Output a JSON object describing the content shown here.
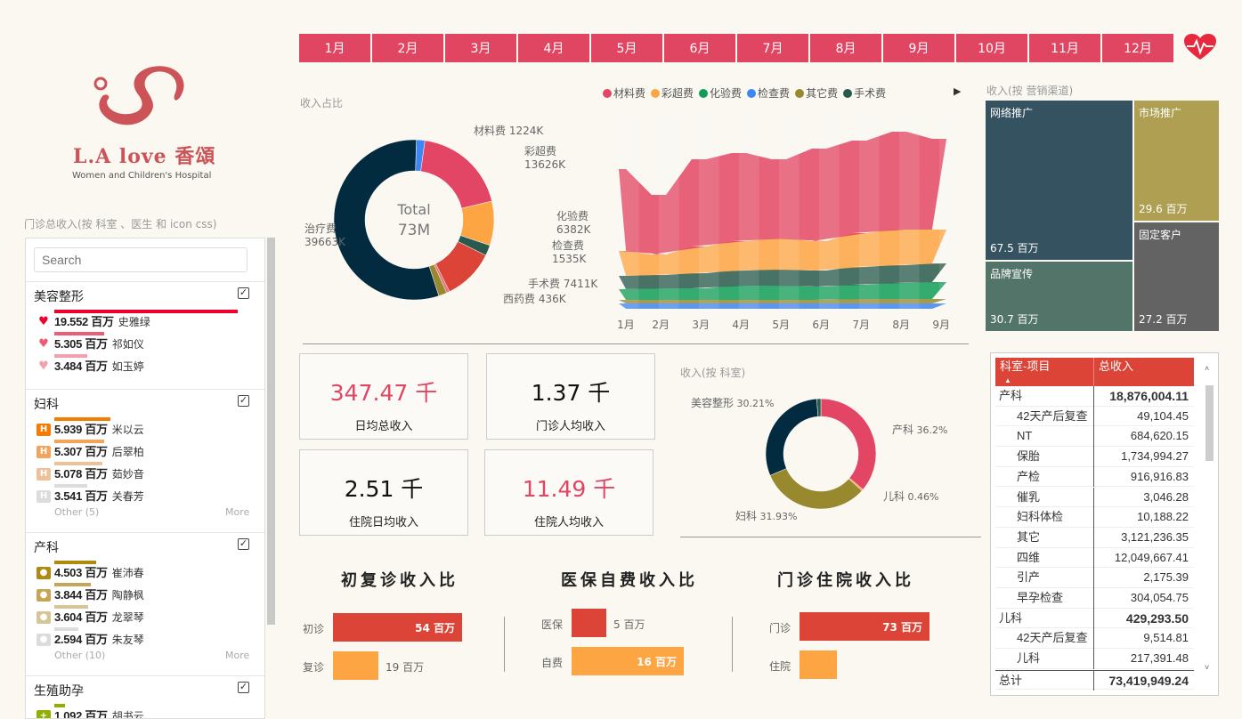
{
  "months": [
    "1月",
    "2月",
    "3月",
    "4月",
    "5月",
    "6月",
    "7月",
    "8月",
    "9月",
    "10月",
    "11月",
    "12月"
  ],
  "colors": {
    "accent": "#e04562",
    "red": "#dc4437",
    "orange": "#fda543",
    "navy": "#032b40"
  },
  "logo": {
    "brand": "L.A love 香頌",
    "subtitle": "Women and Children's Hospital"
  },
  "left_panel": {
    "title": "门诊总收入(按 科室 、医生  和 icon css)",
    "search_placeholder": "Search",
    "max_value": 19.552,
    "unit": "百万",
    "groups": [
      {
        "name": "美容整形",
        "icon": "heart-pulse-icon",
        "entries": [
          {
            "value": "19.552",
            "num": 19.552,
            "name": "史雅绿",
            "color": "#f0002c"
          },
          {
            "value": "5.305",
            "num": 5.305,
            "name": "祁如仪",
            "color": "#ee5c74"
          },
          {
            "value": "3.484",
            "num": 3.484,
            "name": "如玉婷",
            "color": "#f2a0ae"
          }
        ]
      },
      {
        "name": "妇科",
        "icon": "hospital-h-icon",
        "entries": [
          {
            "value": "5.939",
            "num": 5.939,
            "name": "米以云",
            "color": "#f57c00"
          },
          {
            "value": "5.307",
            "num": 5.307,
            "name": "后翠柏",
            "color": "#f0a45c"
          },
          {
            "value": "5.078",
            "num": 5.078,
            "name": "茹妙音",
            "color": "#edc298"
          },
          {
            "value": "3.541",
            "num": 3.541,
            "name": "关春芳",
            "color": "#dcdcdc"
          }
        ],
        "other": "Other (5)",
        "more": "More"
      },
      {
        "name": "产科",
        "icon": "doctor-icon",
        "entries": [
          {
            "value": "4.503",
            "num": 4.503,
            "name": "崔沛春",
            "color": "#b08a10"
          },
          {
            "value": "3.844",
            "num": 3.844,
            "name": "陶静枫",
            "color": "#c6a656"
          },
          {
            "value": "3.604",
            "num": 3.604,
            "name": "龙翠琴",
            "color": "#d6c596"
          },
          {
            "value": "2.594",
            "num": 2.594,
            "name": "朱友琴",
            "color": "#dcdcdc"
          }
        ],
        "other": "Other (10)",
        "more": "More"
      },
      {
        "name": "生殖助孕",
        "icon": "plus-icon",
        "entries": [
          {
            "value": "1.092",
            "num": 1.092,
            "name": "胡书云",
            "color": "#8fb000"
          }
        ]
      }
    ]
  },
  "donut": {
    "title": "收入占比",
    "center_label": "Total",
    "center_value": "73M",
    "slices": [
      {
        "name": "材料费",
        "label": "1224K",
        "value": 1224,
        "color": "#3d86f5"
      },
      {
        "name": "彩超费",
        "label": "13626K",
        "value": 13626,
        "color": "#e34664"
      },
      {
        "name": "化验费",
        "label": "6382K",
        "value": 6382,
        "color": "#fda543"
      },
      {
        "name": "检查费",
        "label": "1535K",
        "value": 1535,
        "color": "#285a4e"
      },
      {
        "name": "手术费",
        "label": "7411K",
        "value": 7411,
        "color": "#db4437"
      },
      {
        "name": "西药费",
        "label": "436K",
        "value": 436,
        "color": "#e8757c"
      },
      {
        "name": "",
        "label": "",
        "value": 1200,
        "color": "#98892e"
      },
      {
        "name": "治疗费",
        "label": "39663K",
        "value": 39663,
        "color": "#032b40"
      }
    ]
  },
  "chart_data": {
    "type": "area",
    "title": "",
    "categories": [
      "1月",
      "2月",
      "3月",
      "4月",
      "5月",
      "6月",
      "7月",
      "8月",
      "9月"
    ],
    "legend_position": "top",
    "series": [
      {
        "name": "检查费",
        "color": "#3d86f5",
        "values": [
          6,
          6,
          6,
          6,
          6,
          6,
          6,
          6,
          6
        ]
      },
      {
        "name": "其它费",
        "color": "#98892e",
        "values": [
          4,
          4,
          4,
          4,
          4,
          4,
          5,
          5,
          5
        ]
      },
      {
        "name": "化验费",
        "color": "#109d58",
        "values": [
          12,
          13,
          13,
          16,
          16,
          15,
          16,
          18,
          19
        ]
      },
      {
        "name": "手术费",
        "color": "#285a4e",
        "values": [
          15,
          15,
          17,
          17,
          18,
          18,
          20,
          20,
          21
        ]
      },
      {
        "name": "彩超费",
        "color": "#fda543",
        "values": [
          28,
          23,
          30,
          33,
          35,
          33,
          38,
          40,
          38
        ]
      },
      {
        "name": "材料费",
        "color": "#e34664",
        "values": [
          92,
          67,
          98,
          99,
          89,
          104,
          104,
          110,
          102
        ]
      }
    ],
    "legend_order": [
      "材料费",
      "彩超费",
      "化验费",
      "检查费",
      "其它费",
      "手术费"
    ]
  },
  "kpis": [
    {
      "value": "347.47 千",
      "label": "日均总收入",
      "color": "#e04562"
    },
    {
      "value": "1.37 千",
      "label": "门诊人均收入",
      "color": "#111"
    },
    {
      "value": "2.51 千",
      "label": "住院日均收入",
      "color": "#111"
    },
    {
      "value": "11.49 千",
      "label": "住院人均收入",
      "color": "#e04562"
    }
  ],
  "dept_donut": {
    "title": "收入(按 科室)",
    "slices": [
      {
        "name": "产科",
        "label": "36.2%",
        "value": 36.2,
        "color": "#e34664"
      },
      {
        "name": "儿科",
        "label": "0.46%",
        "value": 0.46,
        "color": "#fda543"
      },
      {
        "name": "妇科",
        "label": "31.93%",
        "value": 31.93,
        "color": "#98892e"
      },
      {
        "name": "美容整形",
        "label": "30.21%",
        "value": 30.21,
        "color": "#032b40"
      },
      {
        "name": "",
        "label": "",
        "value": 1.2,
        "color": "#285a4e"
      }
    ]
  },
  "treemap": {
    "title": "收入(按  营销渠道)",
    "items": [
      {
        "name": "网络推广",
        "value": "67.5 百万",
        "color": "#34525f"
      },
      {
        "name": "市场推广",
        "value": "29.6 百万",
        "color": "#ae9f52"
      },
      {
        "name": "品牌宣传",
        "value": "30.7 百万",
        "color": "#537468"
      },
      {
        "name": "固定客户",
        "value": "27.2 百万",
        "color": "#636363"
      }
    ]
  },
  "table": {
    "headers": [
      "科室-项目",
      "总收入"
    ],
    "rows": [
      {
        "name": "产科",
        "value": "18,876,004.11",
        "level": 0
      },
      {
        "name": "42天产后复查",
        "value": "49,104.45",
        "level": 1
      },
      {
        "name": "NT",
        "value": "684,620.15",
        "level": 1
      },
      {
        "name": "保胎",
        "value": "1,734,994.27",
        "level": 1
      },
      {
        "name": "产检",
        "value": "916,916.83",
        "level": 1
      },
      {
        "name": "催乳",
        "value": "3,046.28",
        "level": 1
      },
      {
        "name": "妇科体检",
        "value": "10,188.22",
        "level": 1
      },
      {
        "name": "其它",
        "value": "3,121,236.35",
        "level": 1
      },
      {
        "name": "四维",
        "value": "12,049,667.41",
        "level": 1
      },
      {
        "name": "引产",
        "value": "2,175.39",
        "level": 1
      },
      {
        "name": "早孕检查",
        "value": "304,054.75",
        "level": 1
      },
      {
        "name": "儿科",
        "value": "429,293.50",
        "level": 0
      },
      {
        "name": "42天产后复查",
        "value": "9,514.81",
        "level": 1
      },
      {
        "name": "儿科",
        "value": "217,391.48",
        "level": 1
      }
    ],
    "total": {
      "name": "总计",
      "value": "73,419,949.24"
    }
  },
  "bars": [
    {
      "title": "初复诊收入比",
      "items": [
        {
          "name": "初诊",
          "label": "54 百万",
          "value": 54
        },
        {
          "name": "复诊",
          "label": "19 百万",
          "value": 19
        }
      ]
    },
    {
      "title": "医保自费收入比",
      "items": [
        {
          "name": "医保",
          "label": "5 百万",
          "value": 5
        },
        {
          "name": "自费",
          "label": "16 百万",
          "value": 16
        }
      ]
    },
    {
      "title": "门诊住院收入比",
      "items": [
        {
          "name": "门诊",
          "label": "73 百万",
          "value": 73
        },
        {
          "name": "住院",
          "label": "",
          "value": 21
        }
      ]
    }
  ]
}
